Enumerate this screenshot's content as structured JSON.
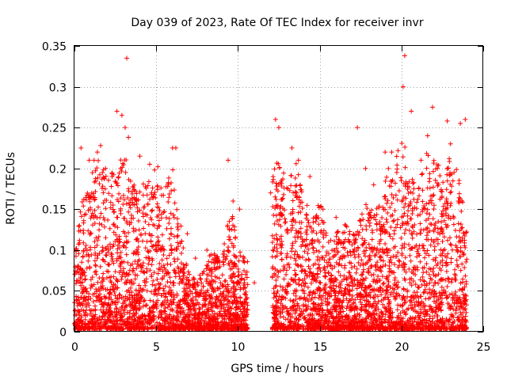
{
  "chart_data": {
    "type": "scatter",
    "title": "Day 039 of 2023, Rate Of TEC Index for receiver invr",
    "xlabel": "GPS time / hours",
    "ylabel": "ROTI / TECUs",
    "xlim": [
      0,
      25
    ],
    "ylim": [
      0,
      0.35
    ],
    "grid": true,
    "marker": "plus",
    "color": "#ff0000",
    "xticks": [
      0,
      5,
      10,
      15,
      20,
      25
    ],
    "yticks": [
      0,
      0.05,
      0.1,
      0.15,
      0.2,
      0.25,
      0.3,
      0.35
    ],
    "xtick_labels": [
      "0",
      "5",
      "10",
      "15",
      "20",
      "25"
    ],
    "ytick_labels": [
      "0",
      "0.05",
      "0.1",
      "0.15",
      "0.2",
      "0.25",
      "0.3",
      "0.35"
    ],
    "series": [
      {
        "name": "ROTI",
        "x": [
          3.2,
          20.2,
          20.1,
          21.9,
          22.8,
          1.6,
          1.4,
          4.0,
          2.6,
          2.9,
          3.1,
          3.3,
          4.6,
          4.9,
          5.1,
          6.0,
          6.2,
          0.4,
          0.9,
          1.2,
          1.9,
          2.3,
          12.3,
          12.5,
          13.3,
          13.7,
          17.3,
          19.4,
          20.6,
          23.6,
          23.9,
          9.4,
          9.7,
          10.4,
          8.1,
          8.7,
          6.9,
          7.4,
          15.2,
          16.6,
          18.3,
          22.2,
          21.2,
          0.1,
          0.2,
          10.1,
          11.0,
          12.0,
          14.4,
          16.0,
          17.8,
          19.0,
          21.6,
          23.0
        ],
        "y": [
          0.335,
          0.338,
          0.3,
          0.275,
          0.258,
          0.228,
          0.22,
          0.215,
          0.27,
          0.265,
          0.25,
          0.238,
          0.205,
          0.198,
          0.202,
          0.225,
          0.225,
          0.225,
          0.21,
          0.21,
          0.2,
          0.19,
          0.26,
          0.25,
          0.225,
          0.21,
          0.25,
          0.22,
          0.27,
          0.255,
          0.26,
          0.21,
          0.16,
          0.085,
          0.1,
          0.09,
          0.12,
          0.09,
          0.15,
          0.13,
          0.18,
          0.2,
          0.21,
          0.1,
          0.08,
          0.15,
          0.06,
          0.17,
          0.19,
          0.14,
          0.2,
          0.22,
          0.24,
          0.23
        ]
      }
    ],
    "generated_bands": [
      {
        "from": 0.0,
        "to": 10.6,
        "peaks": [
          [
            0.0,
            0.1
          ],
          [
            0.5,
            0.16
          ],
          [
            1.0,
            0.19
          ],
          [
            1.5,
            0.21
          ],
          [
            2.0,
            0.19
          ],
          [
            2.5,
            0.2
          ],
          [
            3.0,
            0.22
          ],
          [
            3.5,
            0.18
          ],
          [
            4.0,
            0.17
          ],
          [
            4.5,
            0.19
          ],
          [
            5.0,
            0.19
          ],
          [
            5.5,
            0.17
          ],
          [
            6.0,
            0.2
          ],
          [
            6.5,
            0.13
          ],
          [
            7.0,
            0.07
          ],
          [
            7.5,
            0.06
          ],
          [
            8.0,
            0.08
          ],
          [
            8.5,
            0.1
          ],
          [
            9.0,
            0.08
          ],
          [
            9.5,
            0.16
          ],
          [
            10.0,
            0.1
          ],
          [
            10.6,
            0.085
          ]
        ]
      },
      {
        "from": 12.1,
        "to": 24.0,
        "peaks": [
          [
            12.1,
            0.19
          ],
          [
            12.5,
            0.22
          ],
          [
            13.0,
            0.18
          ],
          [
            13.5,
            0.21
          ],
          [
            14.0,
            0.17
          ],
          [
            14.5,
            0.13
          ],
          [
            15.0,
            0.16
          ],
          [
            15.5,
            0.11
          ],
          [
            16.0,
            0.12
          ],
          [
            16.5,
            0.13
          ],
          [
            17.0,
            0.12
          ],
          [
            17.5,
            0.14
          ],
          [
            18.0,
            0.16
          ],
          [
            18.5,
            0.15
          ],
          [
            19.0,
            0.19
          ],
          [
            19.5,
            0.21
          ],
          [
            20.0,
            0.24
          ],
          [
            20.5,
            0.2
          ],
          [
            21.0,
            0.17
          ],
          [
            21.5,
            0.22
          ],
          [
            22.0,
            0.21
          ],
          [
            22.5,
            0.2
          ],
          [
            23.0,
            0.22
          ],
          [
            23.5,
            0.19
          ],
          [
            24.0,
            0.12
          ]
        ]
      }
    ],
    "generated_point_count": 5200
  }
}
